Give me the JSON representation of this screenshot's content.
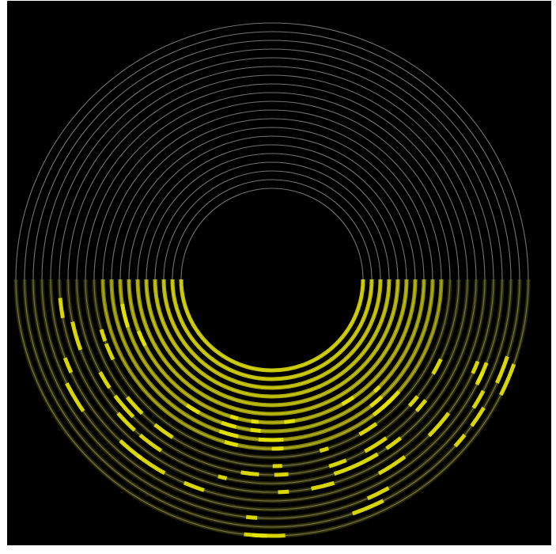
{
  "figure": {
    "background": "#000000",
    "page_background": "#ffffff",
    "spiral_colors": {
      "track": "#9a9a9a",
      "highlight": "#e8e600",
      "highlight_dim": "#7a7a12"
    },
    "turns": 20,
    "highlight_region": "lower half",
    "icon": "spiral-heatmap-rings"
  }
}
